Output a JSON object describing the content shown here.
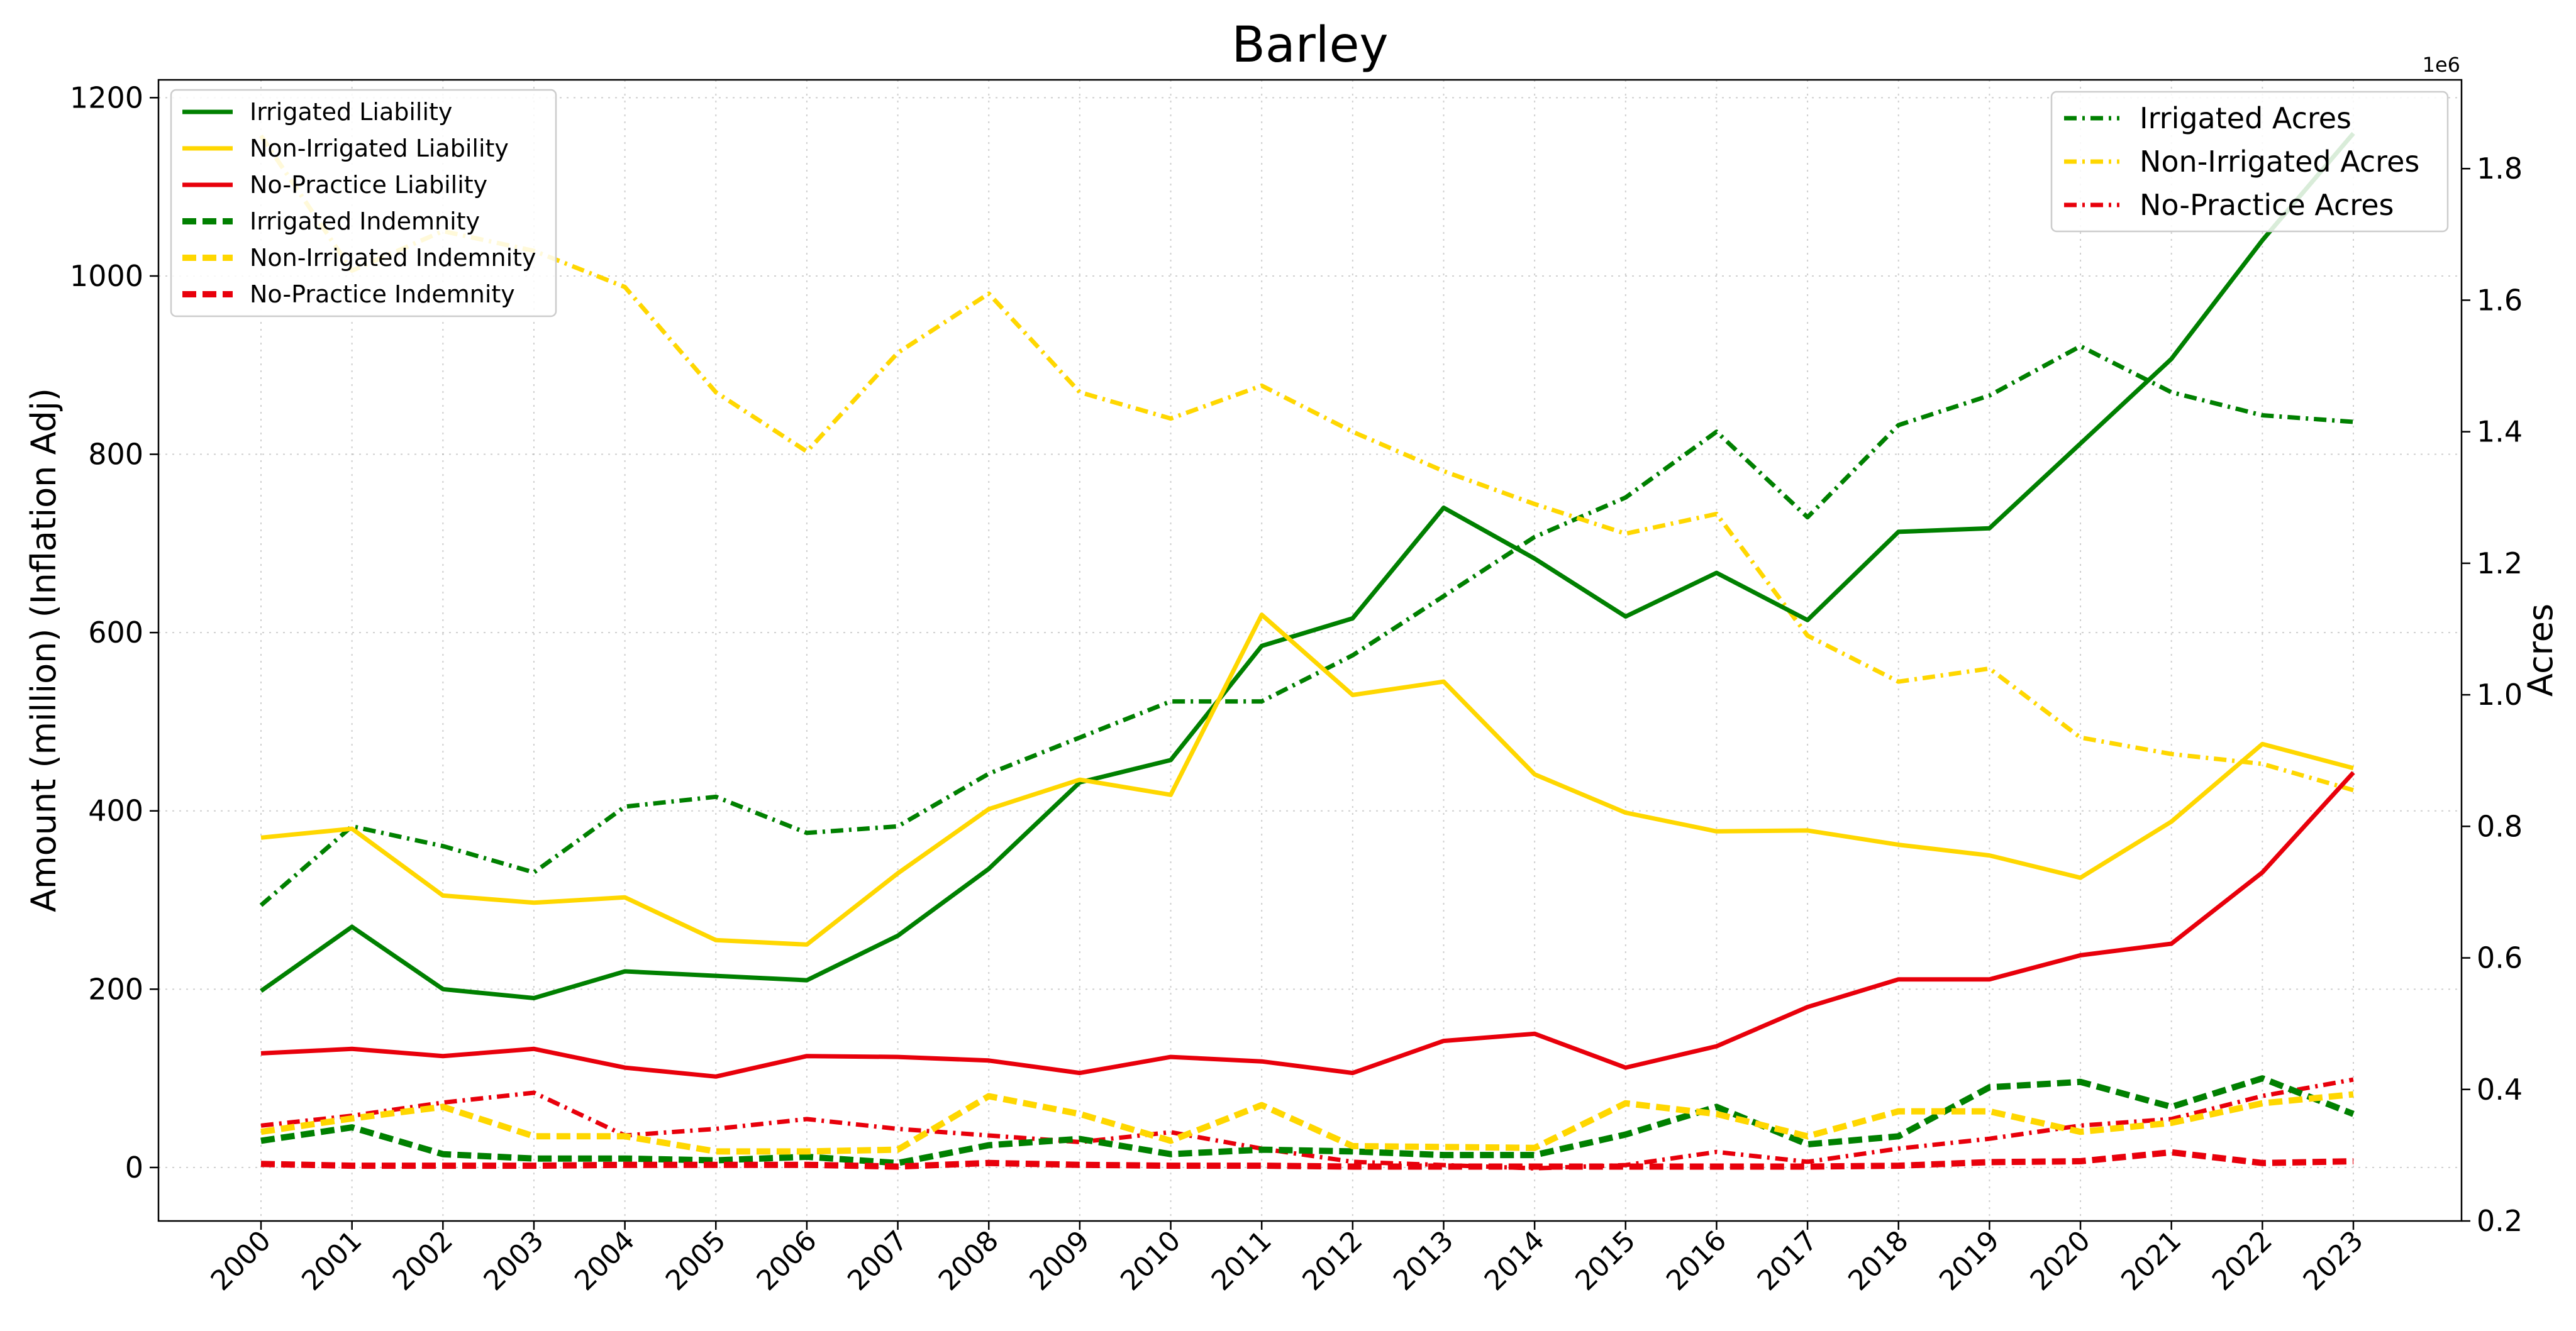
{
  "chart_data": {
    "type": "line",
    "title": "Barley",
    "xlabel": "",
    "ylabel": "Amount (million) (Inflation Adj)",
    "y2label": "Acres",
    "y2_offset_label": "1e6",
    "categories": [
      "2000",
      "2001",
      "2002",
      "2003",
      "2004",
      "2005",
      "2006",
      "2007",
      "2008",
      "2009",
      "2010",
      "2011",
      "2012",
      "2013",
      "2014",
      "2015",
      "2016",
      "2017",
      "2018",
      "2019",
      "2020",
      "2021",
      "2022",
      "2023"
    ],
    "ylim": [
      -60,
      1220
    ],
    "y_ticks": [
      0,
      200,
      400,
      600,
      800,
      1000,
      1200
    ],
    "y2lim": [
      0.2,
      1.935
    ],
    "y2_ticks": [
      0.2,
      0.4,
      0.6,
      0.8,
      1.0,
      1.2,
      1.4,
      1.6,
      1.8
    ],
    "grid": true,
    "legend_left_placement": "upper-left",
    "legend_right_placement": "upper-right",
    "series_left": [
      {
        "name": "Irrigated Liability",
        "color": "#008000",
        "style": "solid",
        "values": [
          198,
          270,
          200,
          190,
          220,
          215,
          210,
          260,
          335,
          432,
          457,
          585,
          616,
          740,
          683,
          618,
          667,
          614,
          713,
          717,
          812,
          907,
          1040,
          1160
        ]
      },
      {
        "name": "Non-Irrigated Liability",
        "color": "#FFD700",
        "style": "solid",
        "values": [
          370,
          380,
          305,
          297,
          303,
          255,
          250,
          330,
          402,
          435,
          418,
          620,
          530,
          545,
          441,
          398,
          377,
          378,
          362,
          350,
          325,
          388,
          475,
          448
        ]
      },
      {
        "name": "No-Practice Liability",
        "color": "#E8000B",
        "style": "solid",
        "values": [
          128,
          133,
          125,
          133,
          112,
          102,
          125,
          124,
          120,
          106,
          124,
          119,
          106,
          142,
          150,
          112,
          136,
          180,
          211,
          211,
          238,
          251,
          331,
          443
        ]
      },
      {
        "name": "Irrigated Indemnity",
        "color": "#008000",
        "style": "dashed",
        "values": [
          30,
          45,
          15,
          10,
          10,
          8,
          12,
          5,
          25,
          32,
          15,
          20,
          18,
          14,
          14,
          37,
          68,
          26,
          35,
          90,
          96,
          68,
          100,
          60
        ]
      },
      {
        "name": "Non-Irrigated Indemnity",
        "color": "#FFD700",
        "style": "dashed",
        "values": [
          40,
          55,
          68,
          35,
          35,
          18,
          18,
          20,
          80,
          60,
          30,
          70,
          24,
          23,
          22,
          72,
          60,
          35,
          63,
          63,
          40,
          50,
          72,
          82
        ]
      },
      {
        "name": "No-Practice Indemnity",
        "color": "#E8000B",
        "style": "dashed",
        "values": [
          4,
          2,
          2,
          2,
          3,
          3,
          3,
          1,
          5,
          3,
          2,
          2,
          1,
          1,
          1,
          1,
          1,
          1,
          2,
          6,
          7,
          17,
          5,
          7
        ]
      }
    ],
    "series_right": [
      {
        "name": "Irrigated Acres",
        "color": "#008000",
        "style": "dashdot",
        "values": [
          0.68,
          0.8,
          0.77,
          0.73,
          0.83,
          0.845,
          0.79,
          0.8,
          0.88,
          0.935,
          0.99,
          0.99,
          1.06,
          1.15,
          1.24,
          1.3,
          1.4,
          1.27,
          1.41,
          1.455,
          1.53,
          1.46,
          1.425,
          1.415
        ]
      },
      {
        "name": "Non-Irrigated Acres",
        "color": "#FFD700",
        "style": "dashdot",
        "values": [
          1.85,
          1.645,
          1.705,
          1.675,
          1.62,
          1.46,
          1.37,
          1.52,
          1.61,
          1.46,
          1.42,
          1.47,
          1.4,
          1.34,
          1.29,
          1.245,
          1.275,
          1.09,
          1.02,
          1.04,
          0.935,
          0.91,
          0.895,
          0.855
        ]
      },
      {
        "name": "No-Practice Acres",
        "color": "#E8000B",
        "style": "dashdot",
        "values": [
          0.345,
          0.36,
          0.38,
          0.395,
          0.33,
          0.34,
          0.355,
          0.34,
          0.33,
          0.32,
          0.335,
          0.31,
          0.29,
          0.285,
          0.28,
          0.285,
          0.305,
          0.29,
          0.31,
          0.325,
          0.345,
          0.355,
          0.39,
          0.415
        ]
      }
    ]
  }
}
